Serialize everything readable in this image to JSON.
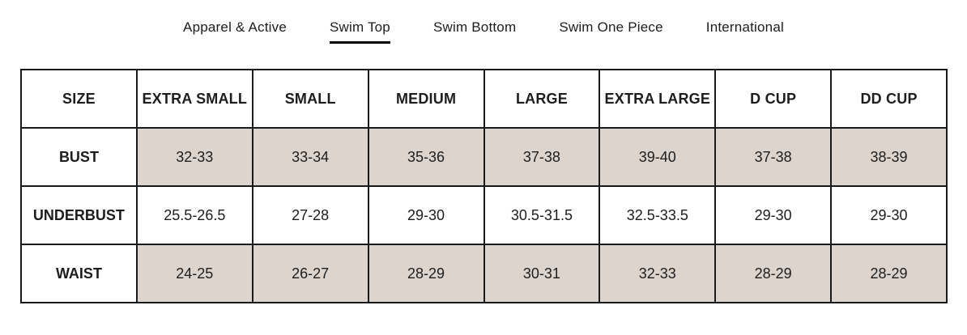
{
  "tabs": [
    {
      "label": "Apparel & Active",
      "active": false
    },
    {
      "label": "Swim Top",
      "active": true
    },
    {
      "label": "Swim Bottom",
      "active": false
    },
    {
      "label": "Swim One Piece",
      "active": false
    },
    {
      "label": "International",
      "active": false
    }
  ],
  "colors": {
    "shaded_cell": "#ddd4ce",
    "border": "#1a1a1a",
    "text": "#1d1d1d",
    "active_tab_underline": "#000000"
  },
  "table": {
    "headers": [
      "SIZE",
      "EXTRA SMALL",
      "SMALL",
      "MEDIUM",
      "LARGE",
      "EXTRA LARGE",
      "D CUP",
      "DD CUP"
    ],
    "rows": [
      {
        "label": "BUST",
        "values": [
          "32-33",
          "33-34",
          "35-36",
          "37-38",
          "39-40",
          "37-38",
          "38-39"
        ]
      },
      {
        "label": "UNDERBUST",
        "values": [
          "25.5-26.5",
          "27-28",
          "29-30",
          "30.5-31.5",
          "32.5-33.5",
          "29-30",
          "29-30"
        ]
      },
      {
        "label": "WAIST",
        "values": [
          "24-25",
          "26-27",
          "28-29",
          "30-31",
          "32-33",
          "28-29",
          "28-29"
        ]
      }
    ]
  }
}
